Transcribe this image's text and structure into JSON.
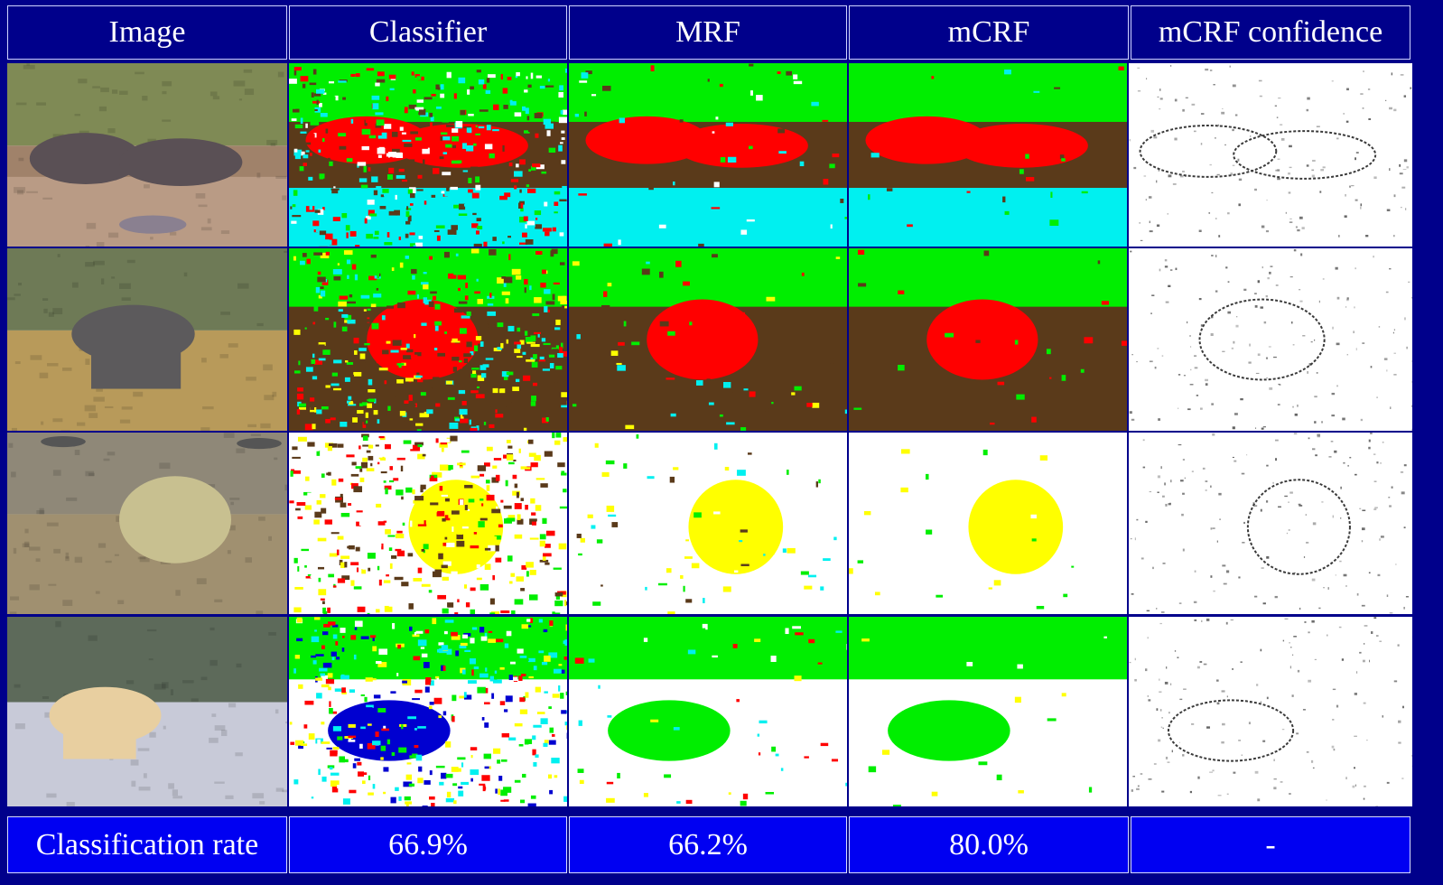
{
  "table": {
    "headers": [
      "Image",
      "Classifier",
      "MRF",
      "mCRF",
      "mCRF confidence"
    ],
    "footer": {
      "label": "Classification rate",
      "values": [
        "66.9%",
        "66.2%",
        "80.0%",
        "-"
      ]
    }
  },
  "rows": [
    {
      "subject": "hippo",
      "image": {
        "sky": "#7f8a55",
        "ground": "#a0826a",
        "water": "#b99b85",
        "animal": "#5a5055"
      },
      "classifier": [
        "#5a3a1a",
        "#ff0000",
        "#00ee00",
        "#00f0f0",
        "#ffffff"
      ],
      "mrf": [
        "#5a3a1a",
        "#ff0000",
        "#00ee00",
        "#00f0f0",
        "#ffffff"
      ],
      "mcrf": [
        "#5a3a1a",
        "#ff0000",
        "#00ee00",
        "#00f0f0"
      ],
      "confidence": "#3a3a3a"
    },
    {
      "subject": "rhino",
      "image": {
        "sky": "#6e7a56",
        "ground": "#b89a5a",
        "water": "#b89a5a",
        "animal": "#5c5a5c"
      },
      "classifier": [
        "#5a3a1a",
        "#ff0000",
        "#00ee00",
        "#00f0f0",
        "#ffff00"
      ],
      "mrf": [
        "#5a3a1a",
        "#ff0000",
        "#00ee00",
        "#00f0f0",
        "#ffff00"
      ],
      "mcrf": [
        "#5a3a1a",
        "#ff0000",
        "#00ee00"
      ],
      "confidence": "#3a3a3a"
    },
    {
      "subject": "polar-bear-1",
      "image": {
        "sky": "#8f8878",
        "ground": "#a09070",
        "water": "#b5a890",
        "animal": "#c8c090"
      },
      "classifier": [
        "#ffffff",
        "#ffff00",
        "#00ee00",
        "#5a3a1a",
        "#ff0000"
      ],
      "mrf": [
        "#ffffff",
        "#ffff00",
        "#00ee00",
        "#5a3a1a",
        "#00f0f0"
      ],
      "mcrf": [
        "#ffffff",
        "#ffff00",
        "#00ee00"
      ],
      "confidence": "#3a3a3a"
    },
    {
      "subject": "polar-bear-2",
      "image": {
        "sky": "#5d6a5a",
        "ground": "#c8cad8",
        "water": "#d6d6e2",
        "animal": "#e8cfa0"
      },
      "classifier": [
        "#ffffff",
        "#0000d0",
        "#00ee00",
        "#ff0000",
        "#00f0f0",
        "#ffff00"
      ],
      "mrf": [
        "#ffffff",
        "#00ee00",
        "#ffff00",
        "#00f0f0",
        "#ff0000"
      ],
      "mcrf": [
        "#ffffff",
        "#00ee00",
        "#ffff00"
      ],
      "confidence": "#3a3a3a"
    }
  ]
}
